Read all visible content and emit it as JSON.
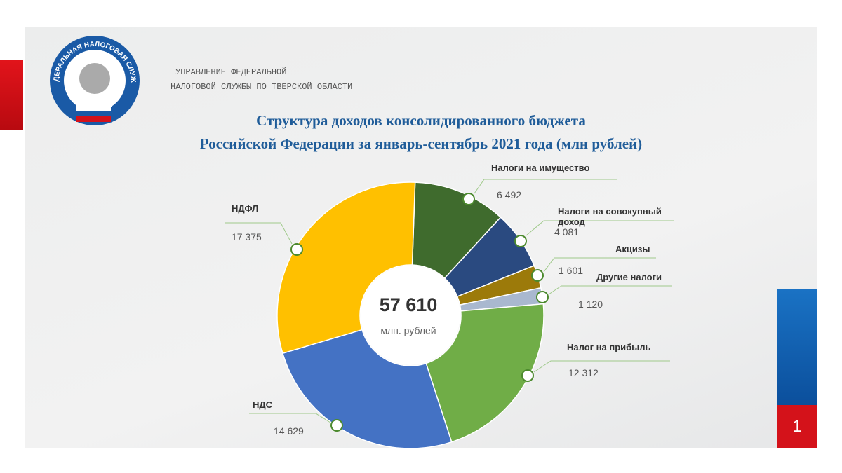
{
  "header": {
    "org_lines": [
      "УПРАВЛЕНИЕ ФЕДЕРАЛЬНОЙ",
      "НАЛОГОВОЙ СЛУЖБЫ ПО ТВЕРСКОЙ ОБЛАСТИ"
    ],
    "logo_text": "ФЕДЕРАЛЬНАЯ НАЛОГОВАЯ СЛУЖБА"
  },
  "chart_data": {
    "type": "donut",
    "title_lines": [
      "Структура доходов консолидированного бюджета",
      "Российской Федерации за январь-сентябрь 2021 года (млн рублей)"
    ],
    "categories": [
      "Налоги на имущество",
      "Налоги на совокупный доход",
      "Акцизы",
      "Другие налоги",
      "Налог на прибыль",
      "НДС",
      "НДФЛ"
    ],
    "values": [
      6492,
      4081,
      1601,
      1120,
      12312,
      14629,
      17375
    ],
    "value_labels": [
      "6 492",
      "4 081",
      "1 601",
      "1 120",
      "12 312",
      "14 629",
      "17 375"
    ],
    "colors": [
      "#3f6b2d",
      "#2a4a80",
      "#9c7a0a",
      "#a9b8cf",
      "#70ad47",
      "#4472c4",
      "#ffc000"
    ],
    "total": {
      "value": 57610,
      "label": "57 610"
    },
    "total_unit": "млн. рублей"
  },
  "page_number": "1"
}
